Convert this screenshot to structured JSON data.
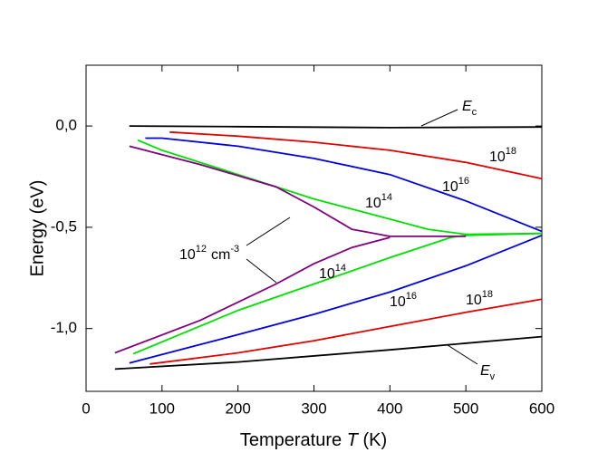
{
  "chart_data": {
    "type": "line",
    "x_label_parts": [
      "Temperature",
      "T",
      "(K)"
    ],
    "y_label": "Energy (eV)",
    "xlim": [
      0,
      600
    ],
    "xticks": [
      0,
      100,
      200,
      300,
      400,
      500,
      600
    ],
    "ylim": [
      -1.31,
      0.3
    ],
    "yticks": [
      {
        "value": 0,
        "label": "0,0"
      },
      {
        "value": -0.5,
        "label": "-0,5"
      },
      {
        "value": -1.0,
        "label": "-1,0"
      }
    ],
    "series": [
      {
        "color": "#000000",
        "x": [
          57,
          200,
          400,
          600
        ],
        "values": [
          0.0,
          -0.003,
          -0.008,
          -0.005
        ]
      },
      {
        "color": "#000000",
        "x": [
          38,
          200,
          400,
          600
        ],
        "values": [
          -1.2,
          -1.165,
          -1.105,
          -1.04
        ]
      },
      {
        "color": "#e00000",
        "x": [
          110,
          200,
          300,
          400,
          500,
          600
        ],
        "values": [
          -0.03,
          -0.05,
          -0.08,
          -0.12,
          -0.18,
          -0.26
        ]
      },
      {
        "color": "#e00000",
        "x": [
          84,
          200,
          300,
          400,
          500,
          600
        ],
        "values": [
          -1.175,
          -1.12,
          -1.06,
          -0.99,
          -0.92,
          -0.855
        ]
      },
      {
        "color": "#0000e0",
        "x": [
          78,
          100,
          200,
          300,
          400,
          500,
          600
        ],
        "values": [
          -0.06,
          -0.06,
          -0.1,
          -0.16,
          -0.24,
          -0.37,
          -0.52
        ]
      },
      {
        "color": "#0000e0",
        "x": [
          57,
          200,
          300,
          400,
          500,
          600
        ],
        "values": [
          -1.17,
          -1.03,
          -0.93,
          -0.82,
          -0.69,
          -0.54
        ]
      },
      {
        "color": "#00e000",
        "x": [
          68,
          100,
          200,
          300,
          400,
          450,
          500,
          600
        ],
        "values": [
          -0.07,
          -0.12,
          -0.24,
          -0.36,
          -0.46,
          -0.51,
          -0.535,
          -0.53
        ]
      },
      {
        "color": "#00e000",
        "x": [
          62,
          200,
          300,
          400,
          480,
          500,
          600
        ],
        "values": [
          -1.125,
          -0.91,
          -0.78,
          -0.65,
          -0.55,
          -0.54,
          -0.53
        ]
      },
      {
        "color": "#800080",
        "x": [
          57,
          150,
          250,
          300,
          350,
          400,
          500
        ],
        "values": [
          -0.1,
          -0.19,
          -0.3,
          -0.4,
          -0.51,
          -0.545,
          -0.545
        ]
      },
      {
        "color": "#800080",
        "x": [
          38,
          150,
          250,
          300,
          350,
          400
        ],
        "values": [
          -1.12,
          -0.96,
          -0.78,
          -0.68,
          -0.6,
          -0.55
        ]
      }
    ],
    "annotations": [
      {
        "text": "E",
        "sub": "c"
      },
      {
        "text": "E",
        "sub": "v"
      },
      {
        "text": "10",
        "sup": "18"
      },
      {
        "text": "10",
        "sup": "18"
      },
      {
        "text": "10",
        "sup": "16"
      },
      {
        "text": "10",
        "sup": "16"
      },
      {
        "text": "10",
        "sup": "14"
      },
      {
        "text": "10",
        "sup": "14"
      },
      {
        "text": "10",
        "sup": "12",
        "text2": "cm",
        "sup2": "-3"
      }
    ]
  }
}
